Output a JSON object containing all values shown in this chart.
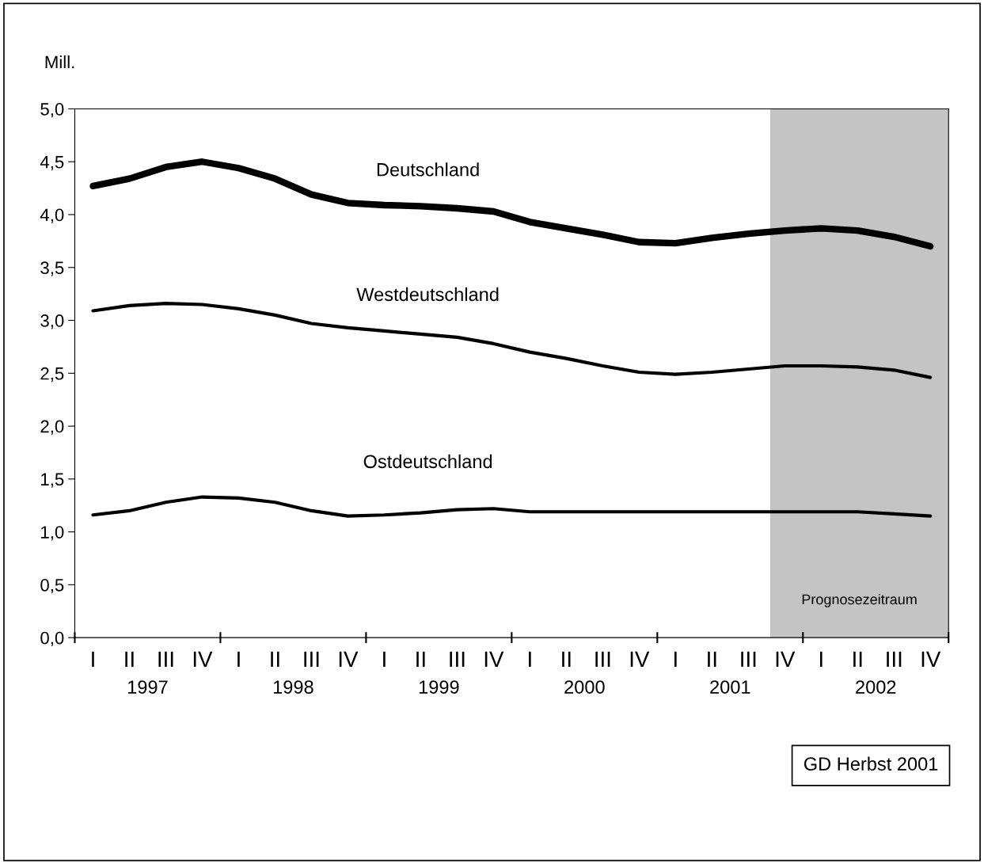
{
  "chart_data": {
    "type": "line",
    "ylabel": "Mill.",
    "categories": [
      "I",
      "II",
      "III",
      "IV",
      "I",
      "II",
      "III",
      "IV",
      "I",
      "II",
      "III",
      "IV",
      "I",
      "II",
      "III",
      "IV",
      "I",
      "II",
      "III",
      "IV",
      "I",
      "II",
      "III",
      "IV"
    ],
    "series": [
      {
        "name": "Deutschland",
        "color": "#000000",
        "values": [
          4.27,
          4.34,
          4.45,
          4.5,
          4.44,
          4.34,
          4.19,
          4.11,
          4.09,
          4.08,
          4.06,
          4.03,
          3.93,
          3.87,
          3.81,
          3.74,
          3.73,
          3.78,
          3.82,
          3.85,
          3.87,
          3.85,
          3.79,
          3.7
        ]
      },
      {
        "name": "Westdeutschland",
        "color": "#000000",
        "values": [
          3.09,
          3.14,
          3.16,
          3.15,
          3.11,
          3.05,
          2.97,
          2.93,
          2.9,
          2.87,
          2.84,
          2.78,
          2.7,
          2.64,
          2.57,
          2.51,
          2.49,
          2.51,
          2.54,
          2.57,
          2.57,
          2.56,
          2.53,
          2.46
        ]
      },
      {
        "name": "Ostdeutschland",
        "color": "#000000",
        "values": [
          1.16,
          1.2,
          1.28,
          1.33,
          1.32,
          1.28,
          1.2,
          1.15,
          1.16,
          1.18,
          1.21,
          1.22,
          1.19,
          1.19,
          1.19,
          1.19,
          1.19,
          1.19,
          1.19,
          1.19,
          1.19,
          1.19,
          1.17,
          1.15
        ]
      }
    ],
    "ylim": [
      0,
      5
    ],
    "yticks": [
      {
        "value": 0,
        "label": "0,0"
      },
      {
        "value": 0.5,
        "label": "0,5"
      },
      {
        "value": 1,
        "label": "1,0"
      },
      {
        "value": 1.5,
        "label": "1,5"
      },
      {
        "value": 2,
        "label": "2,0"
      },
      {
        "value": 2.5,
        "label": "2,5"
      },
      {
        "value": 3,
        "label": "3,0"
      },
      {
        "value": 3.5,
        "label": "3,5"
      },
      {
        "value": 4,
        "label": "4,0"
      },
      {
        "value": 4.5,
        "label": "4,5"
      },
      {
        "value": 5,
        "label": "5,0"
      }
    ],
    "annotations": [
      "1997",
      "1998",
      "1999",
      "2000",
      "2001",
      "2002",
      "Prognosezeitraum",
      "GD Herbst 2001"
    ],
    "grid": false,
    "legend": false,
    "marker": "none",
    "line_style": "solid"
  }
}
